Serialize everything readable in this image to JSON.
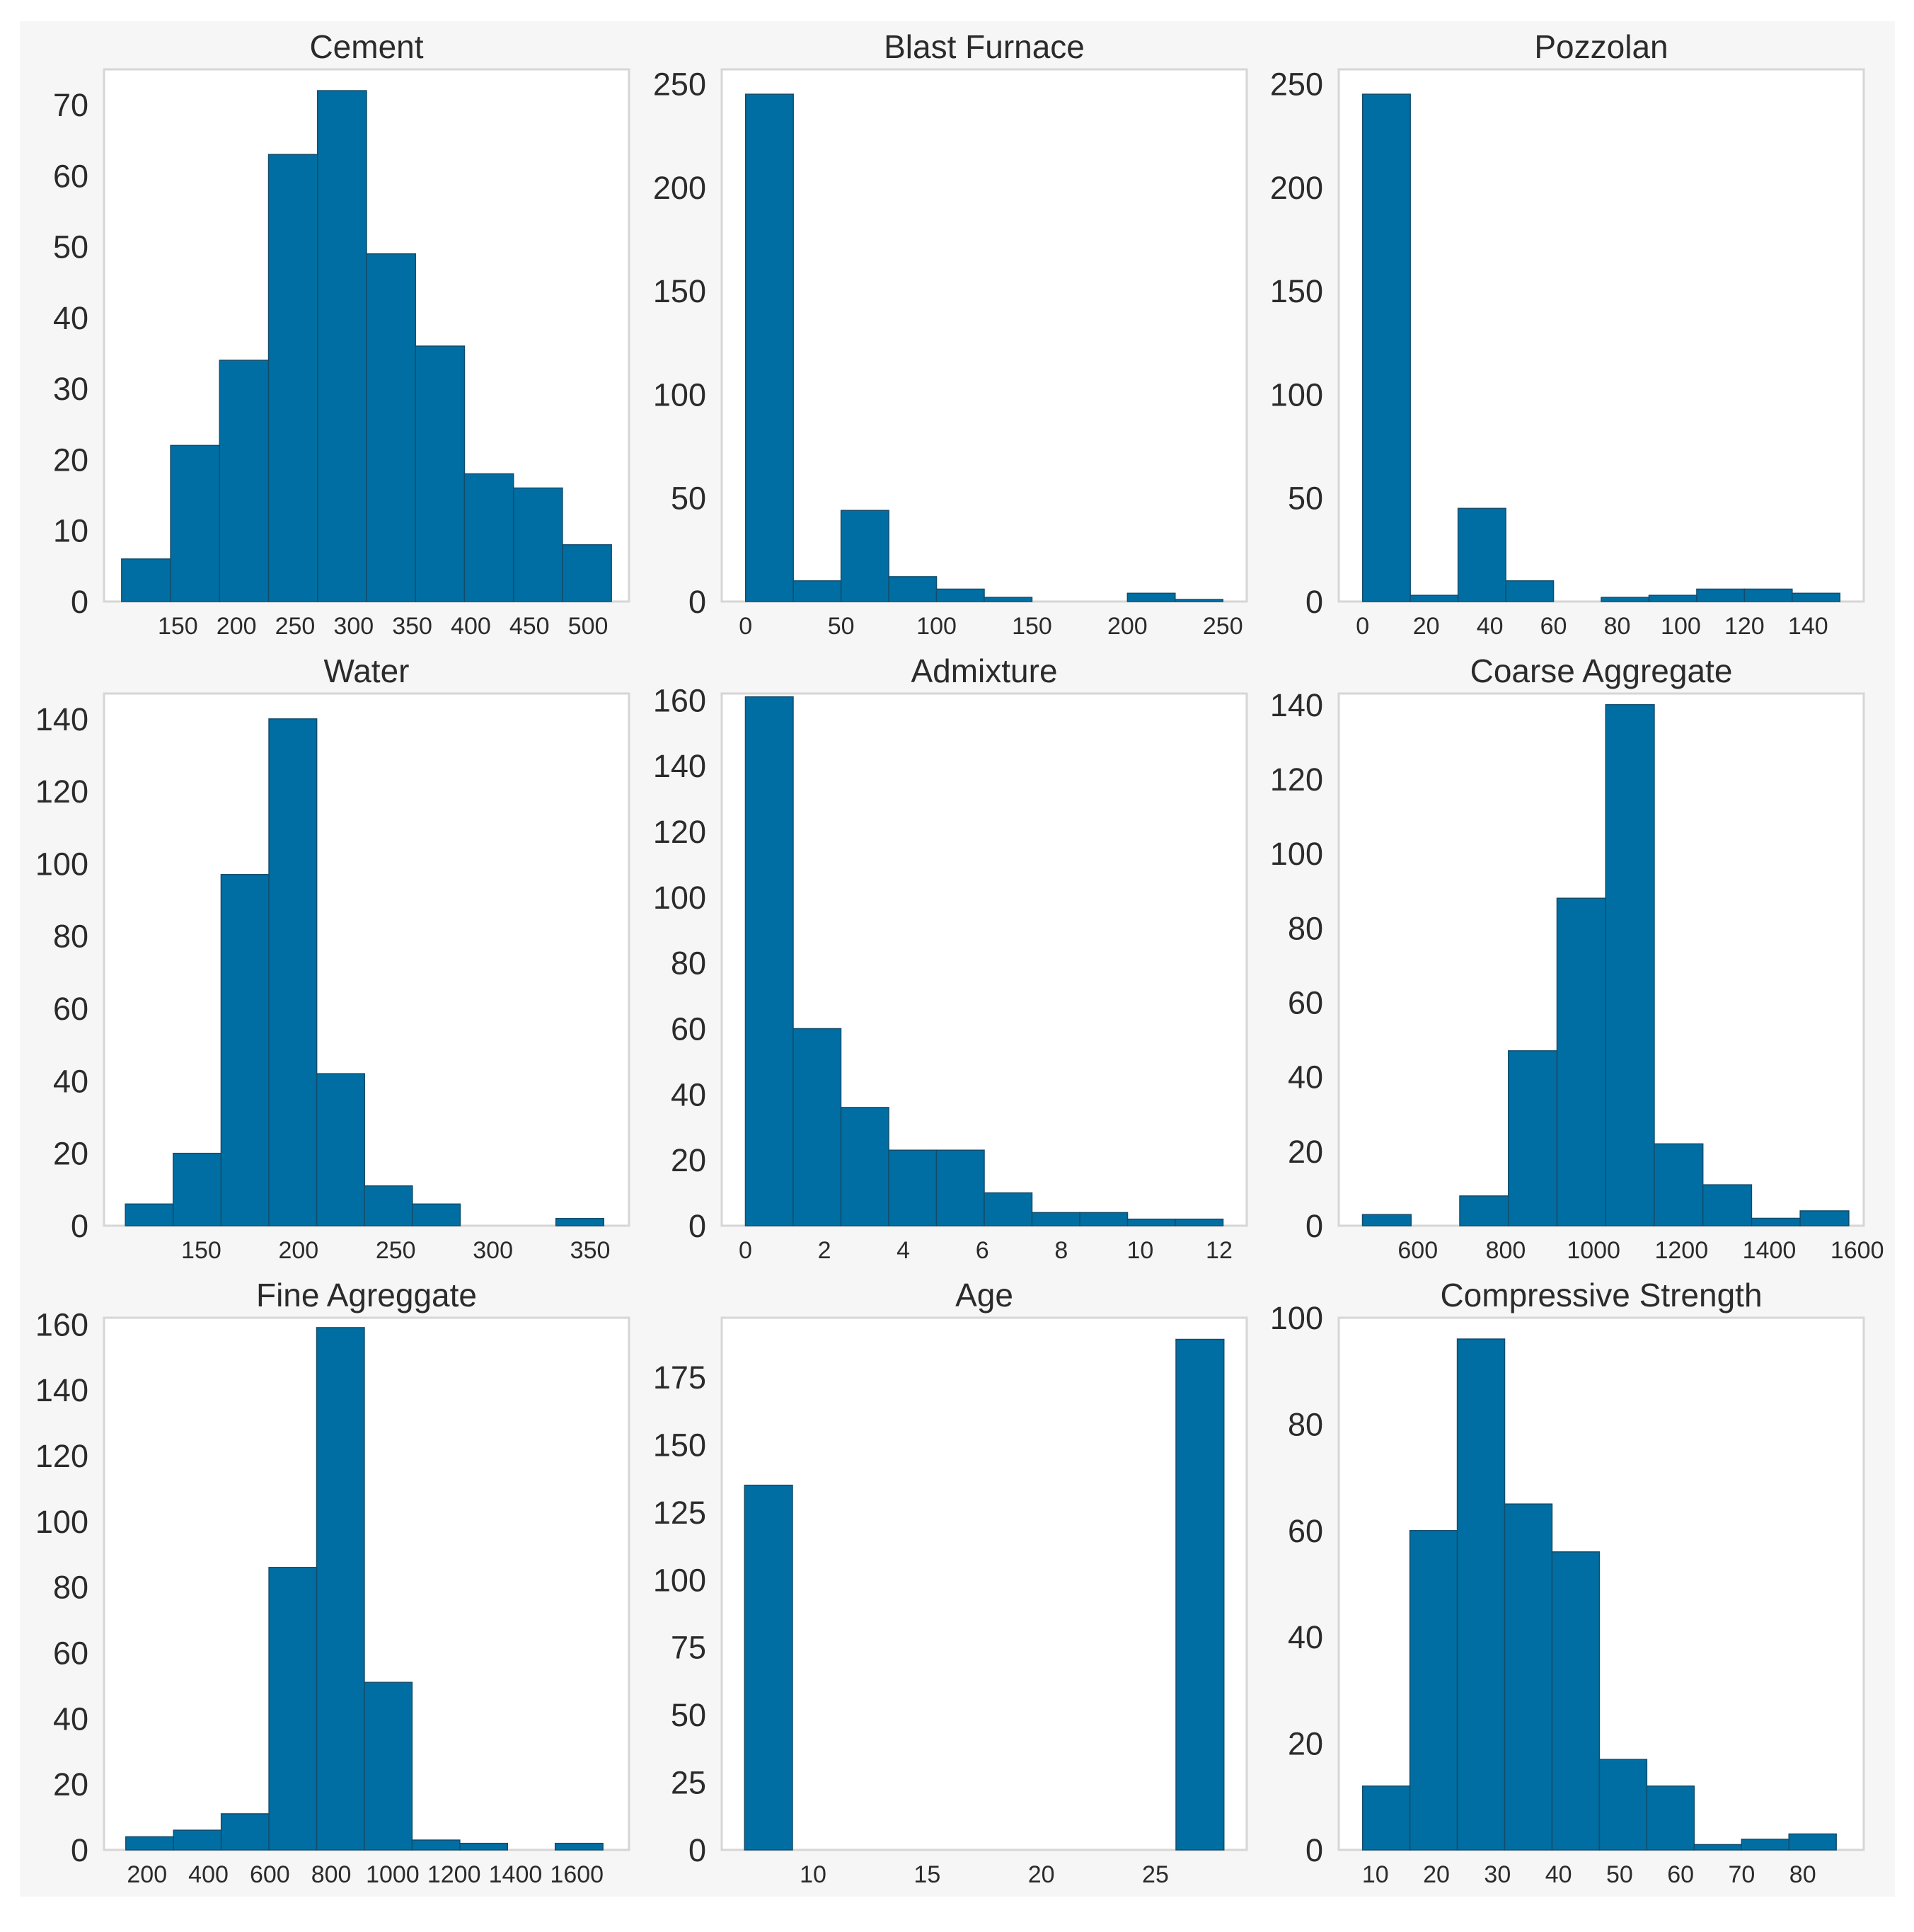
{
  "figure": {
    "background": "#f6f6f6",
    "bar_color": "#006ea2",
    "edge_color": "#134d6c"
  },
  "chart_data": [
    {
      "type": "bar",
      "title": "Cement",
      "xlabel": "",
      "ylabel": "",
      "xlim": [
        87,
        535
      ],
      "ylim": [
        0,
        75
      ],
      "grid": false,
      "bin_edges": [
        102.0,
        143.8,
        185.6,
        227.4,
        269.2,
        311.0,
        352.8,
        394.6,
        436.4,
        478.2,
        520.0
      ],
      "values": [
        6,
        22,
        34,
        63,
        72,
        49,
        36,
        18,
        16,
        8
      ],
      "xticks": [
        150,
        200,
        250,
        300,
        350,
        400,
        450,
        500
      ],
      "yticks": [
        0,
        10,
        20,
        30,
        40,
        50,
        60,
        70
      ]
    },
    {
      "type": "bar",
      "title": "Blast Furnace",
      "xlabel": "",
      "ylabel": "",
      "xlim": [
        -12.5,
        262.5
      ],
      "ylim": [
        0,
        257
      ],
      "grid": false,
      "bin_edges": [
        0,
        25,
        50,
        75,
        100,
        125,
        150,
        175,
        200,
        225,
        250
      ],
      "values": [
        245,
        10,
        44,
        12,
        6,
        2,
        0,
        0,
        4,
        1
      ],
      "xticks": [
        0,
        50,
        100,
        150,
        200,
        250
      ],
      "yticks": [
        0,
        50,
        100,
        150,
        200,
        250
      ]
    },
    {
      "type": "bar",
      "title": "Pozzolan",
      "xlabel": "",
      "ylabel": "",
      "xlim": [
        -7.5,
        157.5
      ],
      "ylim": [
        0,
        257
      ],
      "grid": false,
      "bin_edges": [
        0,
        15,
        30,
        45,
        60,
        75,
        90,
        105,
        120,
        135,
        150
      ],
      "values": [
        245,
        3,
        45,
        10,
        0,
        2,
        3,
        6,
        6,
        4
      ],
      "xticks": [
        0,
        20,
        40,
        60,
        80,
        100,
        120,
        140
      ],
      "yticks": [
        0,
        50,
        100,
        150,
        200,
        250
      ]
    },
    {
      "type": "bar",
      "title": "Water",
      "xlabel": "",
      "ylabel": "",
      "xlim": [
        100,
        370
      ],
      "ylim": [
        0,
        147
      ],
      "grid": false,
      "bin_edges": [
        111,
        135.6,
        160.2,
        184.8,
        209.4,
        234.0,
        258.6,
        283.2,
        307.8,
        332.4,
        357.0
      ],
      "values": [
        6,
        20,
        97,
        140,
        42,
        11,
        6,
        0,
        0,
        2
      ],
      "xticks": [
        150,
        200,
        250,
        300,
        350
      ],
      "yticks": [
        0,
        20,
        40,
        60,
        80,
        100,
        120,
        140
      ]
    },
    {
      "type": "bar",
      "title": "Admixture",
      "xlabel": "",
      "ylabel": "",
      "xlim": [
        -0.6,
        12.7
      ],
      "ylim": [
        0,
        162
      ],
      "grid": false,
      "bin_edges": [
        0,
        1.21,
        2.42,
        3.63,
        4.84,
        6.05,
        7.26,
        8.47,
        9.68,
        10.89,
        12.1
      ],
      "values": [
        161,
        60,
        36,
        23,
        23,
        10,
        4,
        4,
        2,
        2
      ],
      "xticks": [
        0,
        2,
        4,
        6,
        8,
        10,
        12
      ],
      "yticks": [
        0,
        20,
        40,
        60,
        80,
        100,
        120,
        140,
        160
      ]
    },
    {
      "type": "bar",
      "title": "Coarse Aggregate",
      "xlabel": "",
      "ylabel": "",
      "xlim": [
        420,
        1615
      ],
      "ylim": [
        0,
        143
      ],
      "grid": false,
      "bin_edges": [
        474,
        584.7,
        695.4,
        806.1,
        916.8,
        1027.5,
        1138.2,
        1248.9,
        1359.6,
        1470.3,
        1581.0
      ],
      "values": [
        3,
        0,
        8,
        47,
        88,
        140,
        22,
        11,
        2,
        4
      ],
      "xticks": [
        600,
        800,
        1000,
        1200,
        1400,
        1600
      ],
      "yticks": [
        0,
        20,
        40,
        60,
        80,
        100,
        120,
        140
      ]
    },
    {
      "type": "bar",
      "title": "Fine Agreggate",
      "xlabel": "",
      "ylabel": "",
      "xlim": [
        60,
        1770
      ],
      "ylim": [
        0,
        162
      ],
      "grid": false,
      "bin_edges": [
        131,
        286.4,
        441.8,
        597.2,
        752.6,
        908.0,
        1063.4,
        1218.8,
        1374.2,
        1529.6,
        1685.0
      ],
      "values": [
        4,
        6,
        11,
        86,
        159,
        51,
        3,
        2,
        0,
        2
      ],
      "xticks": [
        200,
        400,
        600,
        800,
        1000,
        1200,
        1400,
        1600
      ],
      "yticks": [
        0,
        20,
        40,
        60,
        80,
        100,
        120,
        140,
        160
      ]
    },
    {
      "type": "bar",
      "title": "Age",
      "xlabel": "",
      "ylabel": "",
      "xlim": [
        6,
        29
      ],
      "ylim": [
        0,
        197
      ],
      "grid": false,
      "bin_edges": [
        7,
        9.1,
        11.2,
        13.3,
        15.4,
        17.5,
        19.6,
        21.7,
        23.8,
        25.9,
        28
      ],
      "values": [
        135,
        0,
        0,
        0,
        0,
        0,
        0,
        0,
        0,
        189
      ],
      "xticks": [
        10,
        15,
        20,
        25
      ],
      "yticks": [
        0,
        25,
        50,
        75,
        100,
        125,
        150,
        175
      ]
    },
    {
      "type": "bar",
      "title": "Compressive Strength",
      "xlabel": "",
      "ylabel": "",
      "xlim": [
        4,
        90
      ],
      "ylim": [
        0,
        100
      ],
      "grid": false,
      "bin_edges": [
        7.9,
        15.66,
        23.42,
        31.18,
        38.94,
        46.7,
        54.46,
        62.22,
        69.98,
        77.74,
        85.5
      ],
      "values": [
        12,
        60,
        96,
        65,
        56,
        17,
        12,
        1,
        2,
        3
      ],
      "xticks": [
        10,
        20,
        30,
        40,
        50,
        60,
        70,
        80
      ],
      "yticks": [
        0,
        20,
        40,
        60,
        80,
        100
      ]
    }
  ]
}
